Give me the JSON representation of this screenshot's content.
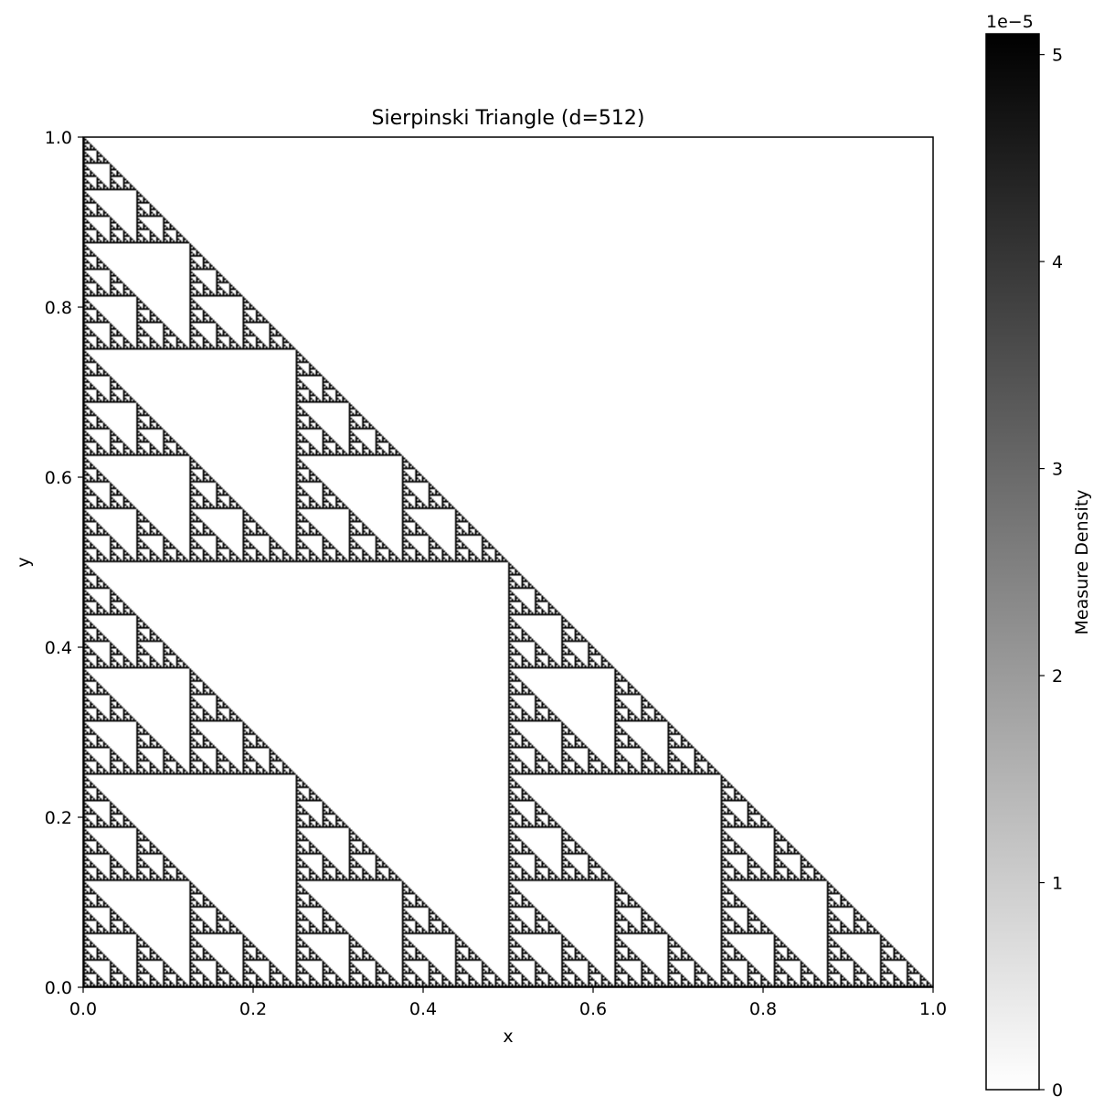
{
  "chart_data": {
    "type": "heatmap",
    "title": "Sierpinski Triangle (d=512)",
    "xlabel": "x",
    "ylabel": "y",
    "xlim": [
      0.0,
      1.0
    ],
    "ylim": [
      0.0,
      1.0
    ],
    "x_ticks": [
      "0.0",
      "0.2",
      "0.4",
      "0.6",
      "0.8",
      "1.0"
    ],
    "y_ticks": [
      "0.0",
      "0.2",
      "0.4",
      "0.6",
      "0.8",
      "1.0"
    ],
    "x_tick_values": [
      0.0,
      0.2,
      0.4,
      0.6,
      0.8,
      1.0
    ],
    "y_tick_values": [
      0.0,
      0.2,
      0.4,
      0.6,
      0.8,
      1.0
    ],
    "grid_size": 512,
    "fractal": "sierpinski-triangle",
    "colormap": "gray_r",
    "colorbar": {
      "label": "Measure Density",
      "offset_text": "1e−5",
      "ticks": [
        "0",
        "1",
        "2",
        "3",
        "4",
        "5"
      ],
      "tick_values": [
        0,
        1,
        2,
        3,
        4,
        5
      ],
      "range": [
        0,
        5.1
      ]
    },
    "grid": false
  }
}
